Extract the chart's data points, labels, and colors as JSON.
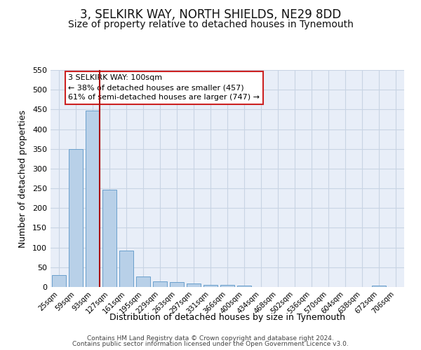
{
  "title": "3, SELKIRK WAY, NORTH SHIELDS, NE29 8DD",
  "subtitle": "Size of property relative to detached houses in Tynemouth",
  "xlabel": "Distribution of detached houses by size in Tynemouth",
  "ylabel": "Number of detached properties",
  "bar_color": "#b8d0e8",
  "bar_edgecolor": "#6aa0cc",
  "vline_color": "#aa1111",
  "annotation_text": "3 SELKIRK WAY: 100sqm\n← 38% of detached houses are smaller (457)\n61% of semi-detached houses are larger (747) →",
  "annotation_box_edgecolor": "#cc2222",
  "categories": [
    "25sqm",
    "59sqm",
    "93sqm",
    "127sqm",
    "161sqm",
    "195sqm",
    "229sqm",
    "263sqm",
    "297sqm",
    "331sqm",
    "366sqm",
    "400sqm",
    "434sqm",
    "468sqm",
    "502sqm",
    "536sqm",
    "570sqm",
    "604sqm",
    "638sqm",
    "672sqm",
    "706sqm"
  ],
  "values": [
    30,
    350,
    447,
    247,
    93,
    26,
    15,
    12,
    8,
    6,
    5,
    4,
    0,
    0,
    0,
    0,
    0,
    0,
    0,
    4,
    0
  ],
  "ylim": [
    0,
    550
  ],
  "yticks": [
    0,
    50,
    100,
    150,
    200,
    250,
    300,
    350,
    400,
    450,
    500,
    550
  ],
  "background_color": "#ffffff",
  "plot_bg_color": "#e8eef8",
  "grid_color": "#c8d4e4",
  "footer_line1": "Contains HM Land Registry data © Crown copyright and database right 2024.",
  "footer_line2": "Contains public sector information licensed under the Open Government Licence v3.0.",
  "title_fontsize": 12,
  "subtitle_fontsize": 10
}
